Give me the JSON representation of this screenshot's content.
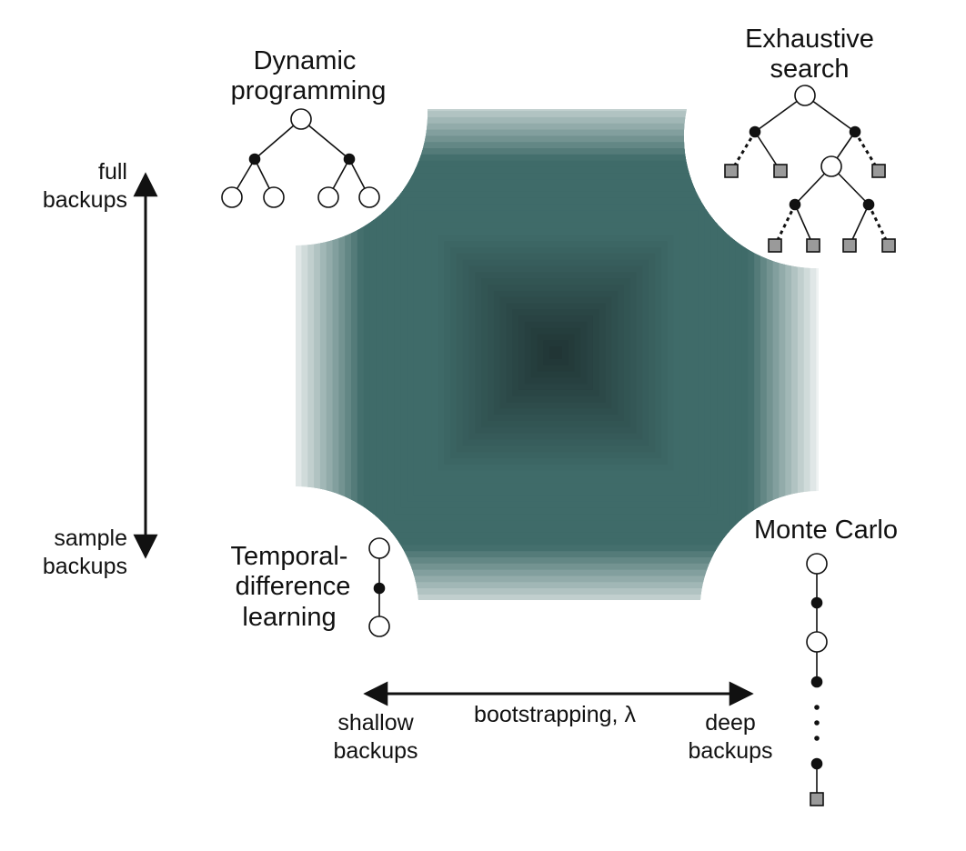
{
  "corners": {
    "dynamic_programming": [
      "Dynamic",
      "programming"
    ],
    "exhaustive_search": [
      "Exhaustive",
      "search"
    ],
    "temporal_difference": [
      "Temporal-",
      "difference",
      "learning"
    ],
    "monte_carlo": [
      "Monte Carlo"
    ]
  },
  "axes": {
    "vertical_top": [
      "full",
      "backups"
    ],
    "vertical_bottom": [
      "sample",
      "backups"
    ],
    "horizontal_center": "bootstrapping, λ",
    "horizontal_left": [
      "shallow",
      "backups"
    ],
    "horizontal_right": [
      "deep",
      "backups"
    ]
  },
  "colors": {
    "gradient_center": "#1f3232",
    "gradient_mid": "#3f6b69",
    "gradient_edge": "#ffffff",
    "terminal_node": "#9a9a9a",
    "ink": "#111111"
  }
}
